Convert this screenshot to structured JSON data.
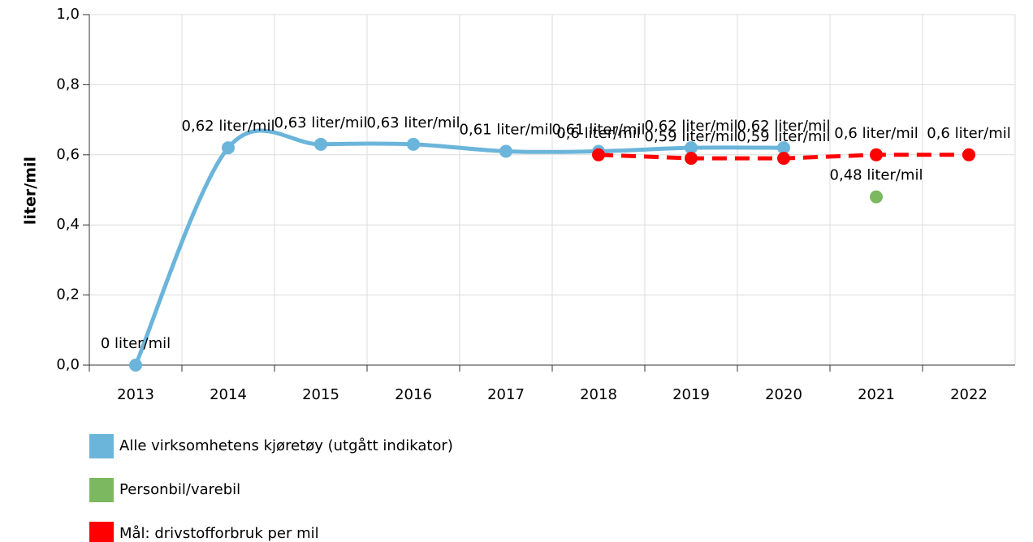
{
  "chart_data": {
    "type": "line",
    "y_label": "liter/mil",
    "categories": [
      "2013",
      "2014",
      "2015",
      "2016",
      "2017",
      "2018",
      "2019",
      "2020",
      "2021",
      "2022"
    ],
    "ylim": [
      0,
      1
    ],
    "yticks": [
      {
        "value": 0,
        "label": "0,0"
      },
      {
        "value": 0.2,
        "label": "0,2"
      },
      {
        "value": 0.4,
        "label": "0,4"
      },
      {
        "value": 0.6,
        "label": "0,6"
      },
      {
        "value": 0.8,
        "label": "0,8"
      },
      {
        "value": 1,
        "label": "1,0"
      }
    ],
    "grid": true,
    "legend": "bottom-left",
    "series": [
      {
        "name": "Alle virksomhetens kjøretøy (utgått indikator)",
        "color": "#6bb5db",
        "smooth": true,
        "dashed": false,
        "values": [
          0,
          0.62,
          0.63,
          0.63,
          0.61,
          0.61,
          0.62,
          0.62,
          null,
          null
        ],
        "value_labels": [
          "0 liter/mil",
          "0,62 liter/mil",
          "0,63 liter/mil",
          "0,63 liter/mil",
          "0,61 liter/mil",
          "0,61 liter/mil",
          "0,62 liter/mil",
          "0,62 liter/mil",
          null,
          null
        ]
      },
      {
        "name": "Personbil/varebil",
        "color": "#7cb85f",
        "smooth": false,
        "dashed": false,
        "values": [
          null,
          null,
          null,
          null,
          null,
          null,
          null,
          null,
          0.48,
          null
        ],
        "value_labels": [
          null,
          null,
          null,
          null,
          null,
          null,
          null,
          null,
          "0,48 liter/mil",
          null
        ]
      },
      {
        "name": "Mål: drivstofforbruk per mil",
        "color": "#ff0000",
        "smooth": false,
        "dashed": true,
        "values": [
          null,
          null,
          null,
          null,
          null,
          0.6,
          0.59,
          0.59,
          0.6,
          0.6
        ],
        "value_labels": [
          null,
          null,
          null,
          null,
          null,
          "0,6 liter/mil",
          "0,59 liter/mil",
          "0,59 liter/mil",
          "0,6 liter/mil",
          "0,6 liter/mil"
        ]
      }
    ]
  }
}
